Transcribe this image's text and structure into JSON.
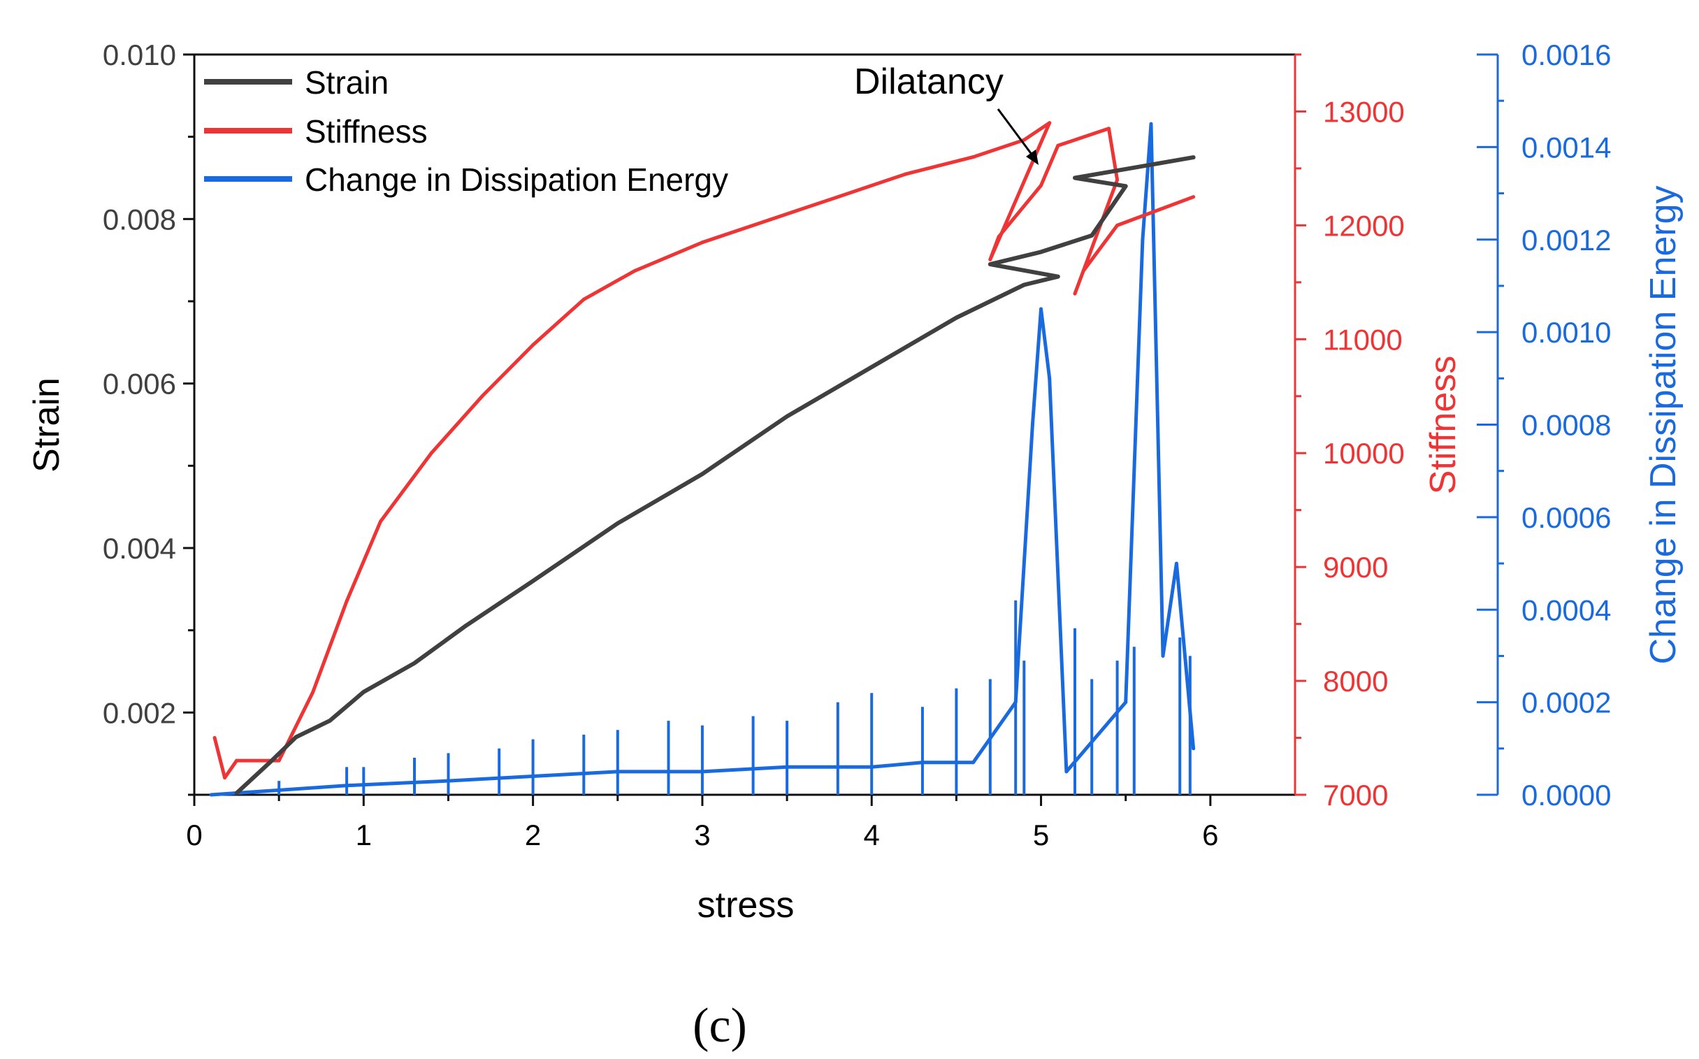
{
  "caption": "(c)",
  "chart_data": {
    "type": "line",
    "x_axis": {
      "label": "stress",
      "lim": [
        0,
        6.5
      ],
      "ticks": [
        0,
        1,
        2,
        3,
        4,
        5,
        6
      ]
    },
    "y_left": {
      "label": "Strain",
      "lim": [
        0.001,
        0.01
      ],
      "ticks": [
        0.002,
        0.004,
        0.006,
        0.008,
        0.01
      ],
      "tick_labels": [
        "0.002",
        "0.004",
        "0.006",
        "0.008",
        "0.010"
      ],
      "color": "#404040"
    },
    "y_right1": {
      "label": "Stiffness",
      "lim": [
        7000,
        13500
      ],
      "ticks": [
        7000,
        8000,
        9000,
        10000,
        11000,
        12000,
        13000
      ],
      "tick_labels": [
        "7000",
        "8000",
        "9000",
        "10000",
        "11000",
        "12000",
        "13000"
      ],
      "color": "#ee3434"
    },
    "y_right2": {
      "label": "Change in Dissipation Energy",
      "lim": [
        0,
        0.0016
      ],
      "ticks": [
        0,
        0.0002,
        0.0004,
        0.0006,
        0.0008,
        0.001,
        0.0012,
        0.0014,
        0.0016
      ],
      "tick_labels": [
        "0.0000",
        "0.0002",
        "0.0004",
        "0.0006",
        "0.0008",
        "0.0010",
        "0.0012",
        "0.0014",
        "0.0016"
      ],
      "color": "#1a6adf"
    },
    "legend": {
      "placement": "top-left",
      "entries": [
        "Strain",
        "Stiffness",
        "Change in Dissipation Energy"
      ]
    },
    "annotation": {
      "text": "Dilatancy",
      "points_to": [
        5.0,
        12550
      ],
      "axis": "stiffness"
    },
    "series": [
      {
        "name": "Strain",
        "color": "#404040",
        "axis": "y_left",
        "x": [
          0.25,
          0.45,
          0.6,
          0.8,
          1.0,
          1.3,
          1.6,
          2.0,
          2.5,
          3.0,
          3.5,
          4.0,
          4.5,
          4.9,
          5.1,
          4.7,
          5.0,
          5.3,
          5.5,
          5.2,
          5.9
        ],
        "y": [
          0.00102,
          0.0014,
          0.0017,
          0.0019,
          0.00225,
          0.0026,
          0.00305,
          0.0036,
          0.0043,
          0.0049,
          0.0056,
          0.0062,
          0.0068,
          0.0072,
          0.0073,
          0.00745,
          0.0076,
          0.0078,
          0.0084,
          0.0085,
          0.00875
        ]
      },
      {
        "name": "Stiffness",
        "color": "#ee3434",
        "axis": "y_right1",
        "x": [
          0.12,
          0.18,
          0.25,
          0.5,
          0.7,
          0.9,
          1.1,
          1.4,
          1.7,
          2.0,
          2.3,
          2.6,
          3.0,
          3.4,
          3.8,
          4.2,
          4.6,
          4.9,
          5.05,
          4.7,
          4.75,
          5.0,
          5.1,
          5.4,
          5.45,
          5.2,
          5.25,
          5.45,
          5.9
        ],
        "y": [
          7500,
          7150,
          7300,
          7300,
          7900,
          8700,
          9400,
          10000,
          10500,
          10950,
          11350,
          11600,
          11850,
          12050,
          12250,
          12450,
          12600,
          12750,
          12900,
          11700,
          11900,
          12350,
          12700,
          12850,
          12400,
          11400,
          11600,
          12000,
          12250
        ]
      },
      {
        "name": "Change in Dissipation Energy",
        "color": "#1a6adf",
        "axis": "y_right2",
        "x": [
          0.1,
          0.9,
          1.5,
          2.0,
          2.5,
          3.0,
          3.5,
          4.0,
          4.3,
          4.6,
          4.85,
          4.95,
          5.0,
          5.05,
          5.15,
          5.5,
          5.6,
          5.65,
          5.72,
          5.8,
          5.9
        ],
        "y": [
          0.0,
          2e-05,
          3e-05,
          4e-05,
          5e-05,
          5e-05,
          6e-05,
          6e-05,
          7e-05,
          7e-05,
          0.0002,
          0.0008,
          0.00105,
          0.0009,
          5e-05,
          0.0002,
          0.0012,
          0.00145,
          0.0003,
          0.0005,
          0.0001
        ]
      }
    ],
    "spikes": {
      "name": "Change in Dissipation Energy",
      "axis": "y_right2",
      "x": [
        0.5,
        0.9,
        1.0,
        1.3,
        1.5,
        1.8,
        2.0,
        2.3,
        2.5,
        2.8,
        3.0,
        3.3,
        3.5,
        3.8,
        4.0,
        4.3,
        4.5,
        4.7,
        4.85,
        4.9,
        5.2,
        5.3,
        5.45,
        5.55,
        5.82,
        5.88
      ],
      "y": [
        3e-05,
        6e-05,
        6e-05,
        8e-05,
        9e-05,
        0.0001,
        0.00012,
        0.00013,
        0.00014,
        0.00016,
        0.00015,
        0.00017,
        0.00016,
        0.0002,
        0.00022,
        0.00019,
        0.00023,
        0.00025,
        0.00042,
        0.00029,
        0.00036,
        0.00025,
        0.00029,
        0.00032,
        0.00034,
        0.0003
      ]
    }
  }
}
